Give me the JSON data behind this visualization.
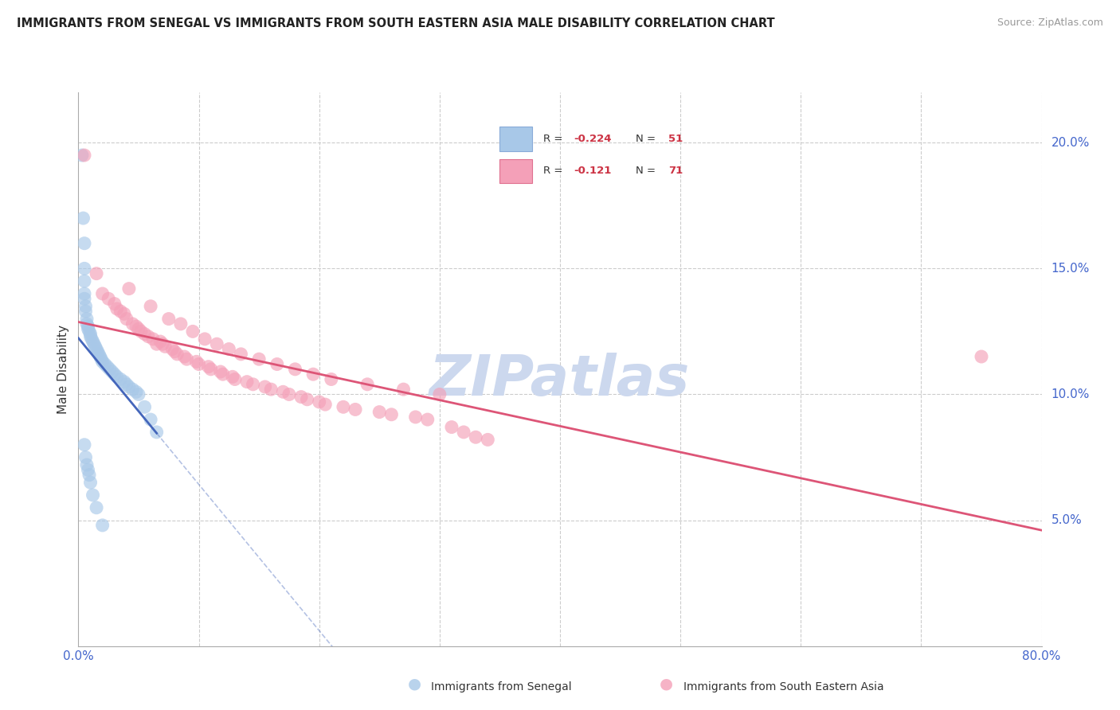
{
  "title": "IMMIGRANTS FROM SENEGAL VS IMMIGRANTS FROM SOUTH EASTERN ASIA MALE DISABILITY CORRELATION CHART",
  "source": "Source: ZipAtlas.com",
  "ylabel": "Male Disability",
  "xlim": [
    0.0,
    0.8
  ],
  "ylim": [
    0.0,
    0.22
  ],
  "xticks": [
    0.0,
    0.1,
    0.2,
    0.3,
    0.4,
    0.5,
    0.6,
    0.7,
    0.8
  ],
  "yticks_right": [
    0.05,
    0.1,
    0.15,
    0.2
  ],
  "ytick_labels_right": [
    "5.0%",
    "10.0%",
    "15.0%",
    "20.0%"
  ],
  "senegal_color": "#a8c8e8",
  "sea_color": "#f4a0b8",
  "trendline_senegal_color": "#4466bb",
  "trendline_sea_color": "#dd5577",
  "watermark": "ZIPatlas",
  "watermark_color": "#ccd8ee",
  "grid_color": "#cccccc",
  "background_color": "#ffffff",
  "senegal_x": [
    0.003,
    0.004,
    0.005,
    0.005,
    0.005,
    0.005,
    0.005,
    0.006,
    0.006,
    0.007,
    0.007,
    0.008,
    0.008,
    0.009,
    0.01,
    0.01,
    0.011,
    0.012,
    0.013,
    0.014,
    0.015,
    0.016,
    0.017,
    0.018,
    0.019,
    0.02,
    0.022,
    0.024,
    0.026,
    0.028,
    0.03,
    0.032,
    0.035,
    0.038,
    0.04,
    0.042,
    0.045,
    0.048,
    0.05,
    0.055,
    0.06,
    0.065,
    0.005,
    0.006,
    0.007,
    0.008,
    0.009,
    0.01,
    0.012,
    0.015,
    0.02
  ],
  "senegal_y": [
    0.195,
    0.17,
    0.16,
    0.15,
    0.145,
    0.14,
    0.138,
    0.135,
    0.133,
    0.13,
    0.128,
    0.127,
    0.126,
    0.125,
    0.124,
    0.123,
    0.122,
    0.121,
    0.12,
    0.119,
    0.118,
    0.117,
    0.116,
    0.115,
    0.114,
    0.113,
    0.112,
    0.111,
    0.11,
    0.109,
    0.108,
    0.107,
    0.106,
    0.105,
    0.104,
    0.103,
    0.102,
    0.101,
    0.1,
    0.095,
    0.09,
    0.085,
    0.08,
    0.075,
    0.072,
    0.07,
    0.068,
    0.065,
    0.06,
    0.055,
    0.048
  ],
  "sea_x": [
    0.005,
    0.015,
    0.02,
    0.025,
    0.03,
    0.032,
    0.035,
    0.038,
    0.04,
    0.042,
    0.045,
    0.048,
    0.05,
    0.052,
    0.055,
    0.058,
    0.06,
    0.062,
    0.065,
    0.068,
    0.07,
    0.072,
    0.075,
    0.078,
    0.08,
    0.082,
    0.085,
    0.088,
    0.09,
    0.095,
    0.098,
    0.1,
    0.105,
    0.108,
    0.11,
    0.115,
    0.118,
    0.12,
    0.125,
    0.128,
    0.13,
    0.135,
    0.14,
    0.145,
    0.15,
    0.155,
    0.16,
    0.165,
    0.17,
    0.175,
    0.18,
    0.185,
    0.19,
    0.195,
    0.2,
    0.205,
    0.21,
    0.22,
    0.23,
    0.24,
    0.25,
    0.26,
    0.27,
    0.28,
    0.29,
    0.3,
    0.31,
    0.32,
    0.33,
    0.34,
    0.75
  ],
  "sea_y": [
    0.195,
    0.148,
    0.14,
    0.138,
    0.136,
    0.134,
    0.133,
    0.132,
    0.13,
    0.142,
    0.128,
    0.127,
    0.126,
    0.125,
    0.124,
    0.123,
    0.135,
    0.122,
    0.12,
    0.121,
    0.12,
    0.119,
    0.13,
    0.118,
    0.117,
    0.116,
    0.128,
    0.115,
    0.114,
    0.125,
    0.113,
    0.112,
    0.122,
    0.111,
    0.11,
    0.12,
    0.109,
    0.108,
    0.118,
    0.107,
    0.106,
    0.116,
    0.105,
    0.104,
    0.114,
    0.103,
    0.102,
    0.112,
    0.101,
    0.1,
    0.11,
    0.099,
    0.098,
    0.108,
    0.097,
    0.096,
    0.106,
    0.095,
    0.094,
    0.104,
    0.093,
    0.092,
    0.102,
    0.091,
    0.09,
    0.1,
    0.087,
    0.085,
    0.083,
    0.082,
    0.115
  ]
}
